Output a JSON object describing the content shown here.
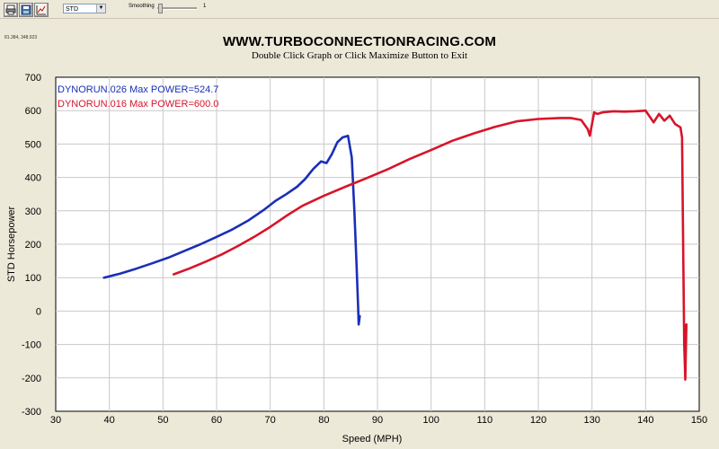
{
  "toolbar": {
    "buttons": [
      "print-icon",
      "save-icon",
      "chart-icon"
    ],
    "filter_value": "STD",
    "smoothing_label": "Smoothing",
    "smoothing_value": "1"
  },
  "coord_readout": "81.384, 348.923",
  "chart_data": {
    "type": "line",
    "title": "WWW.TURBOCONNECTIONRACING.COM",
    "subtitle": "Double Click Graph or Click Maximize Button to Exit",
    "xlabel": "Speed (MPH)",
    "ylabel": "STD Horsepower",
    "xlim": [
      30,
      150
    ],
    "ylim": [
      -300,
      700
    ],
    "xticks": [
      30,
      40,
      50,
      60,
      70,
      80,
      90,
      100,
      110,
      120,
      130,
      140,
      150
    ],
    "yticks": [
      -300,
      -200,
      -100,
      0,
      100,
      200,
      300,
      400,
      500,
      600,
      700
    ],
    "grid": true,
    "legend_position": "top-left",
    "series": [
      {
        "name": "DYNORUN.026",
        "label": "DYNORUN.026  Max POWER=524.7",
        "color": "#1a2fb8",
        "x": [
          39,
          42,
          45,
          48,
          51,
          54,
          57,
          60,
          63,
          66,
          69,
          71,
          73,
          75,
          76.5,
          78,
          79.5,
          80.5,
          81.5,
          82.5,
          83.5,
          84.5,
          85.2,
          85.7,
          86.1,
          86.4,
          86.5,
          86.7
        ],
        "y": [
          100,
          112,
          127,
          143,
          160,
          180,
          200,
          222,
          245,
          272,
          305,
          330,
          350,
          372,
          395,
          425,
          448,
          443,
          470,
          505,
          520,
          524.7,
          460,
          300,
          140,
          10,
          -40,
          -15
        ]
      },
      {
        "name": "DYNORUN.016",
        "label": "DYNORUN.016  Max POWER=600.0",
        "color": "#d8142a",
        "x": [
          52,
          55,
          58,
          61,
          64,
          67,
          70,
          73,
          76,
          80,
          84,
          88,
          92,
          96,
          100,
          104,
          108,
          112,
          116,
          120,
          124,
          126,
          128,
          129.2,
          129.6,
          130,
          130.4,
          131,
          132,
          134,
          136,
          138,
          140,
          141.5,
          142.5,
          143.5,
          144.5,
          145.5,
          146.5,
          146.8,
          147.0,
          147.2,
          147.4,
          147.6
        ],
        "y": [
          110,
          128,
          148,
          170,
          195,
          222,
          252,
          285,
          315,
          345,
          372,
          398,
          425,
          455,
          482,
          510,
          532,
          552,
          568,
          575,
          578,
          578,
          572,
          545,
          525,
          560,
          595,
          590,
          595,
          598,
          597,
          598,
          600,
          565,
          590,
          570,
          585,
          560,
          550,
          520,
          200,
          -100,
          -205,
          -40
        ]
      }
    ]
  },
  "colors": {
    "background": "#ece9d8",
    "plot_background": "#ffffff",
    "grid": "#c8c8c8",
    "run_026": "#1a2fb8",
    "run_016": "#d8142a"
  }
}
